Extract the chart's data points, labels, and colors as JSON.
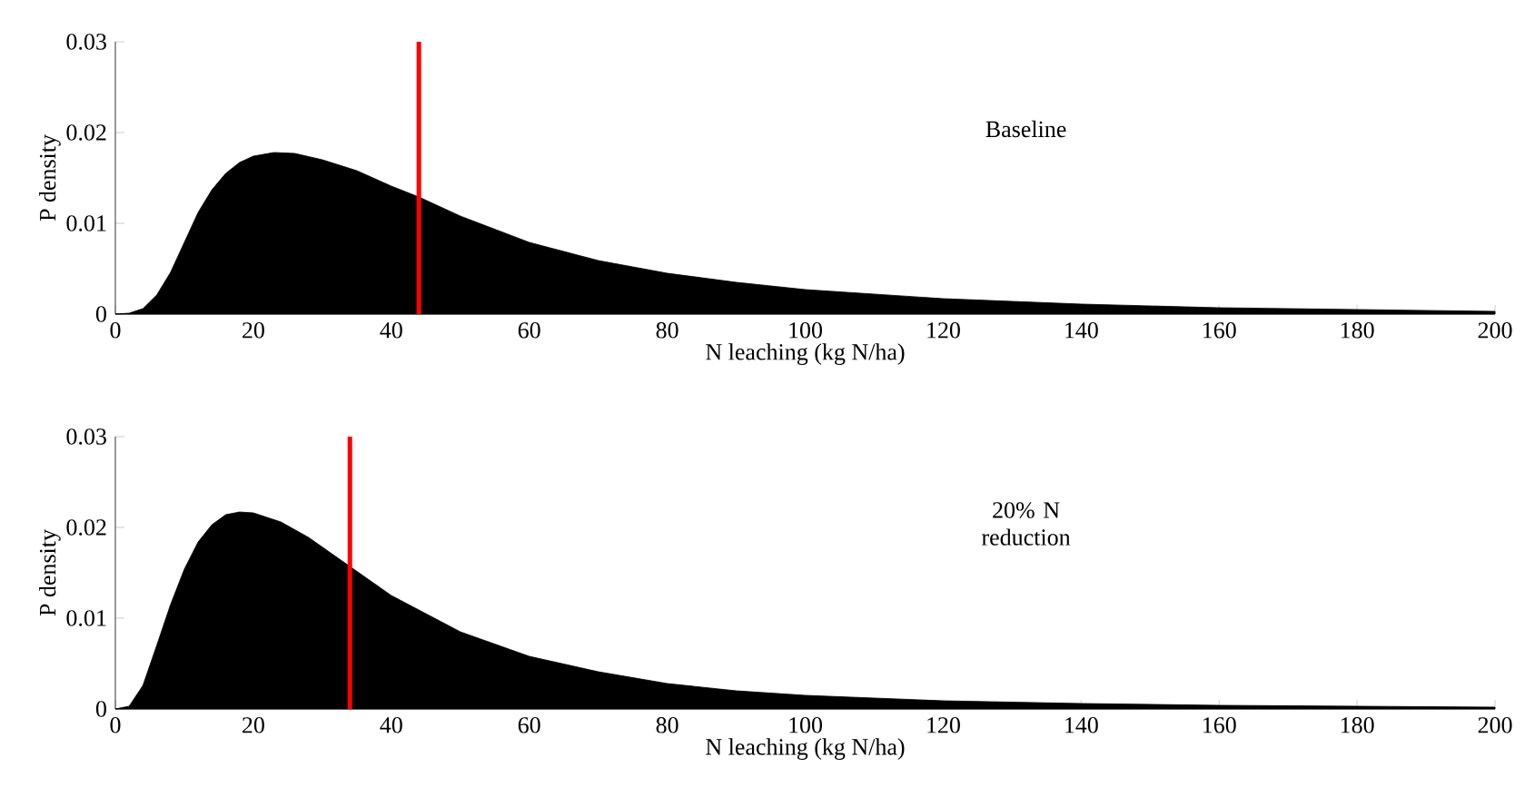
{
  "chart_data": [
    {
      "type": "area",
      "xlabel": "N leaching (kg N/ha)",
      "ylabel": "P density",
      "annotations": [
        "Baseline"
      ],
      "x": [
        0,
        2,
        4,
        6,
        8,
        10,
        12,
        14,
        16,
        18,
        20,
        23,
        26,
        30,
        35,
        40,
        44,
        50,
        60,
        70,
        80,
        90,
        100,
        120,
        140,
        160,
        180,
        200
      ],
      "series": [
        {
          "color": "#000000",
          "values": [
            0,
            0.0001,
            0.0006,
            0.0021,
            0.0046,
            0.0079,
            0.0112,
            0.0137,
            0.0155,
            0.0167,
            0.0174,
            0.0178,
            0.0177,
            0.017,
            0.0158,
            0.0141,
            0.0129,
            0.0108,
            0.0079,
            0.0059,
            0.0045,
            0.0035,
            0.0027,
            0.0017,
            0.0011,
            0.0007,
            0.0005,
            0.0003
          ]
        }
      ],
      "xlim": [
        0,
        200
      ],
      "ylim": [
        0,
        0.03
      ],
      "xticks": [
        0,
        20,
        40,
        60,
        80,
        100,
        120,
        140,
        160,
        180,
        200
      ],
      "yticks": [
        0,
        0.01,
        0.02,
        0.03
      ],
      "ref_lines": [
        {
          "axis": "x",
          "value": 44,
          "color": "#ff0000"
        }
      ]
    },
    {
      "type": "area",
      "xlabel": "N leaching (kg N/ha)",
      "ylabel": "P density",
      "annotations": [
        "20% N reduction"
      ],
      "x": [
        0,
        2,
        4,
        6,
        8,
        10,
        12,
        14,
        16,
        18,
        20,
        24,
        28,
        34,
        40,
        50,
        60,
        70,
        80,
        90,
        100,
        120,
        140,
        160,
        180,
        200
      ],
      "series": [
        {
          "color": "#000000",
          "values": [
            0,
            0.0003,
            0.0026,
            0.007,
            0.0115,
            0.0154,
            0.0184,
            0.0203,
            0.0214,
            0.0217,
            0.0216,
            0.0206,
            0.0189,
            0.0157,
            0.0125,
            0.0085,
            0.0058,
            0.0041,
            0.0028,
            0.002,
            0.0015,
            0.0009,
            0.0006,
            0.0004,
            0.0003,
            0.0002
          ]
        }
      ],
      "xlim": [
        0,
        200
      ],
      "ylim": [
        0,
        0.03
      ],
      "xticks": [
        0,
        20,
        40,
        60,
        80,
        100,
        120,
        140,
        160,
        180,
        200
      ],
      "yticks": [
        0,
        0.01,
        0.02,
        0.03
      ],
      "ref_lines": [
        {
          "axis": "x",
          "value": 34,
          "color": "#ff0000"
        }
      ]
    }
  ]
}
